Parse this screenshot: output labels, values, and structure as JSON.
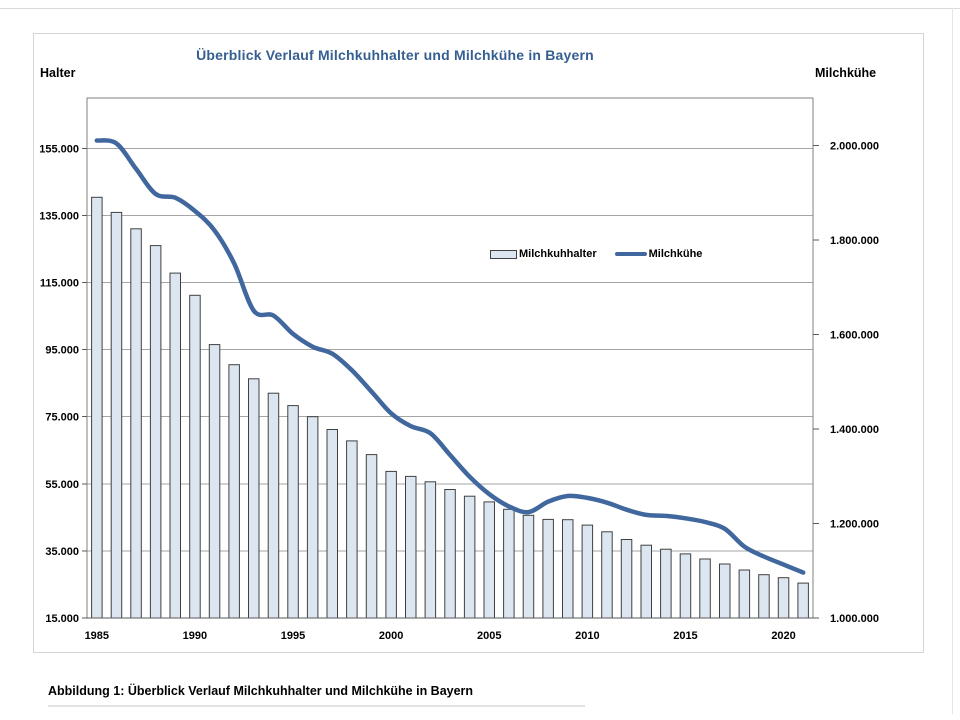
{
  "page": {
    "caption": "Abbildung 1: Überblick Verlauf Milchkuhhalter und Milchkühe in Bayern"
  },
  "chart_data": {
    "type": "bar",
    "subtype": "combo bar + smoothed line, dual y-axes",
    "title": "Überblick Verlauf Milchkuhhalter und Milchkühe in Bayern",
    "title_color": "#365f91",
    "grid": "horizontal gridlines on (left-axis steps), vertical off",
    "legend_position": "inside plot, upper middle-right",
    "categories": [
      1985,
      1986,
      1987,
      1988,
      1989,
      1990,
      1991,
      1992,
      1993,
      1994,
      1995,
      1996,
      1997,
      1998,
      1999,
      2000,
      2001,
      2002,
      2003,
      2004,
      2005,
      2006,
      2007,
      2008,
      2009,
      2010,
      2011,
      2012,
      2013,
      2014,
      2015,
      2016,
      2017,
      2018,
      2019,
      2020,
      2021
    ],
    "x_tick_labels": [
      "1985",
      "1990",
      "1995",
      "2000",
      "2005",
      "2010",
      "2015",
      "2020"
    ],
    "left_axis": {
      "title": "Halter",
      "min": 15000,
      "max": 170000,
      "tick_values": [
        155000,
        135000,
        115000,
        95000,
        75000,
        55000,
        35000,
        15000
      ],
      "tick_labels": [
        "155.000",
        "135.000",
        "115.000",
        "95.000",
        "75.000",
        "55.000",
        "35.000",
        "15.000"
      ]
    },
    "right_axis": {
      "title": "Milchkühe",
      "min": 1000000,
      "max": 2100000,
      "tick_values": [
        2000000,
        1800000,
        1600000,
        1400000,
        1200000,
        1000000
      ],
      "tick_labels": [
        "2.000.000",
        "1.800.000",
        "1.600.000",
        "1.400.000",
        "1.200.000",
        "1.000.000"
      ]
    },
    "series": [
      {
        "name": "Milchkuhhalter",
        "type": "bar",
        "axis": "left",
        "fill_color": "#dce6f1",
        "border_color": "#404040",
        "values": [
          140400,
          135900,
          131000,
          126000,
          117800,
          111200,
          96500,
          90500,
          86300,
          82000,
          78300,
          75000,
          71200,
          67800,
          63700,
          58700,
          57200,
          55600,
          53300,
          51300,
          49600,
          47400,
          45600,
          44400,
          44300,
          42700,
          40700,
          38400,
          36700,
          35500,
          34100,
          32600,
          31100,
          29300,
          27900,
          27000,
          25400
        ]
      },
      {
        "name": "Milchkühe",
        "type": "line",
        "axis": "right",
        "color": "#40679e",
        "smoothed": true,
        "values": [
          2010000,
          2004000,
          1950000,
          1897000,
          1889000,
          1861000,
          1820000,
          1750000,
          1650000,
          1640000,
          1601000,
          1574000,
          1559000,
          1524000,
          1479000,
          1433000,
          1406000,
          1391000,
          1345000,
          1299000,
          1262000,
          1236000,
          1224000,
          1246000,
          1258000,
          1254000,
          1244000,
          1229000,
          1218000,
          1216000,
          1211000,
          1203000,
          1189000,
          1151000,
          1130000,
          1113000,
          1096000
        ]
      }
    ]
  }
}
